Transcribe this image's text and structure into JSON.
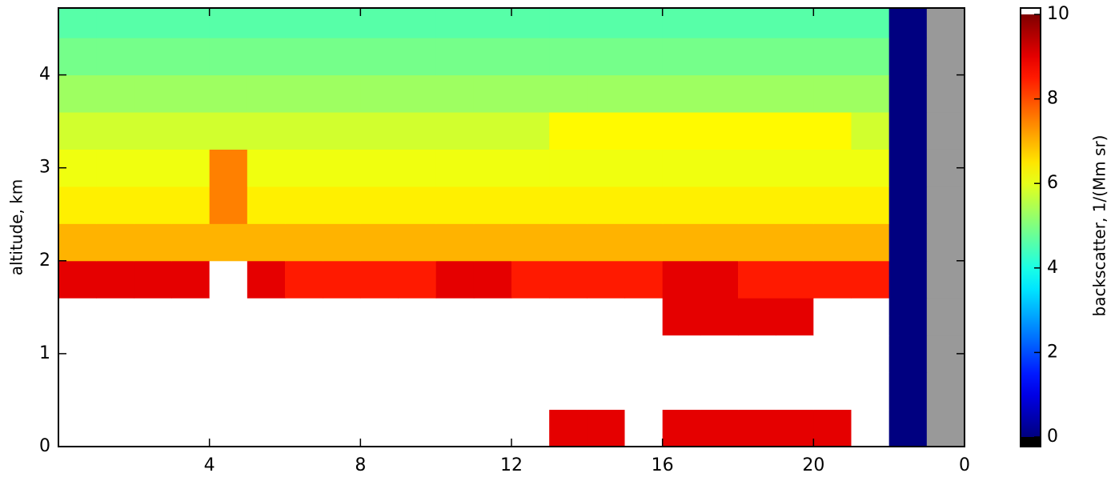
{
  "chart_data": {
    "type": "heatmap",
    "ylabel": "altitude, km",
    "x_edges": [
      0,
      1,
      2,
      3,
      4,
      5,
      6,
      7,
      8,
      9,
      10,
      11,
      12,
      13,
      14,
      15,
      16,
      17,
      18,
      19,
      20,
      21,
      22,
      23,
      24
    ],
    "y_edges": [
      0,
      0.4,
      0.8,
      1.2,
      1.6,
      2.0,
      2.4,
      2.8,
      3.2,
      3.6,
      4.0,
      4.4,
      4.72
    ],
    "values": [
      [
        11,
        11,
        11,
        11,
        11,
        11,
        11,
        11,
        11,
        11,
        11,
        11,
        11,
        9,
        9,
        11,
        9,
        9,
        9,
        9,
        9,
        11,
        0,
        null
      ],
      [
        11,
        11,
        11,
        11,
        11,
        11,
        11,
        11,
        11,
        11,
        11,
        11,
        11,
        11,
        11,
        11,
        11,
        11,
        11,
        11,
        11,
        11,
        0,
        null
      ],
      [
        11,
        11,
        11,
        11,
        11,
        11,
        11,
        11,
        11,
        11,
        11,
        11,
        11,
        11,
        11,
        11,
        11,
        11,
        11,
        11,
        11,
        11,
        0,
        null
      ],
      [
        11,
        11,
        11,
        11,
        11,
        11,
        11,
        11,
        11,
        11,
        11,
        11,
        11,
        11,
        11,
        11,
        9,
        9,
        9,
        9,
        11,
        11,
        0,
        null
      ],
      [
        9,
        9,
        9,
        9,
        11,
        9,
        8.5,
        8.5,
        8.5,
        8.5,
        9,
        9,
        8.5,
        8.5,
        8.5,
        8.5,
        9,
        9,
        8.5,
        8.5,
        8.5,
        8.5,
        0,
        null
      ],
      [
        7,
        7,
        7,
        7,
        7,
        7,
        7,
        7,
        7,
        7,
        7,
        7,
        7,
        7,
        7,
        7,
        7,
        7,
        7,
        7,
        7,
        7,
        0,
        null
      ],
      [
        6.4,
        6.4,
        6.4,
        6.4,
        7.5,
        6.4,
        6.4,
        6.4,
        6.4,
        6.4,
        6.4,
        6.4,
        6.4,
        6.4,
        6.4,
        6.4,
        6.4,
        6.4,
        6.4,
        6.4,
        6.4,
        6.4,
        0,
        null
      ],
      [
        6.1,
        6.1,
        6.1,
        6.1,
        7.5,
        6.1,
        6.1,
        6.1,
        6.1,
        6.1,
        6.1,
        6.1,
        6.1,
        6.1,
        6.1,
        6.1,
        6.1,
        6.1,
        6.1,
        6.1,
        6.1,
        6.1,
        0,
        null
      ],
      [
        5.8,
        5.8,
        5.8,
        5.8,
        5.8,
        5.8,
        5.8,
        5.8,
        5.8,
        5.8,
        5.8,
        5.8,
        5.8,
        6.3,
        6.3,
        6.3,
        6.3,
        6.3,
        6.3,
        6.3,
        6.3,
        5.8,
        0,
        null
      ],
      [
        5.3,
        5.3,
        5.3,
        5.3,
        5.3,
        5.3,
        5.3,
        5.3,
        5.3,
        5.3,
        5.3,
        5.3,
        5.3,
        5.3,
        5.3,
        5.3,
        5.3,
        5.3,
        5.3,
        5.3,
        5.3,
        5.3,
        0,
        null
      ],
      [
        4.9,
        4.9,
        4.9,
        4.9,
        4.9,
        4.9,
        4.9,
        4.9,
        4.9,
        4.9,
        4.9,
        4.9,
        4.9,
        4.9,
        4.9,
        4.9,
        4.9,
        4.9,
        4.9,
        4.9,
        4.9,
        4.9,
        0,
        null
      ],
      [
        4.6,
        4.6,
        4.6,
        4.6,
        4.6,
        4.6,
        4.6,
        4.6,
        4.6,
        4.6,
        4.6,
        4.6,
        4.6,
        4.6,
        4.6,
        4.6,
        4.6,
        4.6,
        4.6,
        4.6,
        4.6,
        4.6,
        0,
        null
      ]
    ],
    "xlim": [
      0,
      24
    ],
    "ylim": [
      0,
      4.72
    ],
    "xticks": [
      4,
      8,
      12,
      16,
      20,
      {
        "value": 24,
        "label": "0"
      }
    ],
    "yticks": [
      0,
      1,
      2,
      3,
      4
    ],
    "colorbar": {
      "label": "backscatter, 1/(Mm sr)",
      "lim": [
        0,
        10
      ],
      "ticks": [
        0,
        2,
        4,
        6,
        8,
        10
      ]
    }
  }
}
